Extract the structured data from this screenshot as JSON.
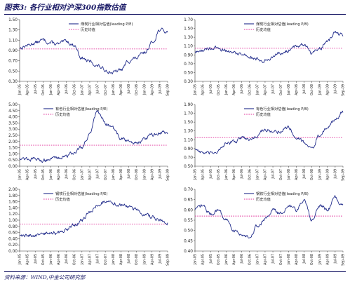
{
  "figure": {
    "title": "图表3: 各行业相对沪深300指数估值",
    "source": "资料来源：WIND,中金公司研究部"
  },
  "colors": {
    "series": "#1f2a8a",
    "mean": "#e0309a",
    "text": "#1a1a66"
  },
  "chart_data": [
    {
      "type": "line",
      "title": "",
      "legend": {
        "series": "煤炭行业相对估值(leading P/E)",
        "mean": "历史均值",
        "placement": "top-right"
      },
      "x": [
        "Jan-05",
        "Apr-05",
        "Jul-05",
        "Oct-05",
        "Jan-06",
        "Apr-06",
        "Jul-06",
        "Oct-06",
        "Jan-07",
        "Apr-07",
        "Jul-07",
        "Oct-07",
        "Jan-08",
        "Apr-08",
        "Jul-08",
        "Oct-08",
        "Jan-09",
        "Apr-09",
        "Jul-09",
        "Sep-09"
      ],
      "series": [
        {
          "values": [
            0.95,
            1.0,
            1.05,
            1.1,
            1.05,
            1.02,
            1.08,
            1.0,
            0.75,
            0.68,
            0.6,
            0.52,
            0.47,
            0.52,
            0.7,
            0.75,
            0.85,
            1.05,
            1.3,
            1.25
          ]
        }
      ],
      "mean": 0.93,
      "ylim": [
        0.3,
        1.5
      ],
      "yticks": [
        "0.30",
        "0.50",
        "0.70",
        "0.90",
        "1.10",
        "1.30",
        "1.50"
      ]
    },
    {
      "type": "line",
      "title": "",
      "legend": {
        "series": "煤炭行业相对估值(leading P/B)",
        "mean": "历史均值",
        "placement": "top-right"
      },
      "x": [
        "Jan-05",
        "Apr-05",
        "Jul-05",
        "Oct-05",
        "Jan-06",
        "Apr-06",
        "Jul-06",
        "Oct-06",
        "Jan-07",
        "Apr-07",
        "Jul-07",
        "Oct-07",
        "Jan-08",
        "Apr-08",
        "Jul-08",
        "Oct-08",
        "Jan-09",
        "Apr-09",
        "Jul-09",
        "Sep-09"
      ],
      "series": [
        {
          "values": [
            0.95,
            1.0,
            1.05,
            1.05,
            1.0,
            0.95,
            0.92,
            0.88,
            0.8,
            0.78,
            0.85,
            0.92,
            1.0,
            1.1,
            1.15,
            0.95,
            1.05,
            1.2,
            1.4,
            1.35
          ]
        }
      ],
      "mean": 1.05,
      "ylim": [
        0.3,
        1.7
      ],
      "yticks": [
        "0.30",
        "0.50",
        "0.70",
        "0.90",
        "1.10",
        "1.30",
        "1.50",
        "1.70"
      ]
    },
    {
      "type": "line",
      "title": "",
      "legend": {
        "series": "有色行业相对估值(leading P/E)",
        "mean": "历史均值",
        "placement": "top-left"
      },
      "x": [
        "Jan-05",
        "Apr-05",
        "Jul-05",
        "Oct-05",
        "Jan-06",
        "Apr-06",
        "Jul-06",
        "Oct-06",
        "Jan-07",
        "Apr-07",
        "Jul-07",
        "Oct-07",
        "Jan-08",
        "Apr-08",
        "Jul-08",
        "Oct-08",
        "Jan-09",
        "Apr-09",
        "Jul-09",
        "Sep-09"
      ],
      "series": [
        {
          "values": [
            0.7,
            0.6,
            0.55,
            0.5,
            0.6,
            0.7,
            0.85,
            1.1,
            1.6,
            2.6,
            4.4,
            3.5,
            3.0,
            2.3,
            2.0,
            1.9,
            2.2,
            2.5,
            2.7,
            2.7
          ]
        }
      ],
      "mean": 1.7,
      "ylim": [
        0.0,
        5.0
      ],
      "yticks": [
        "0.00",
        "0.50",
        "1.00",
        "1.50",
        "2.00",
        "2.50",
        "3.00",
        "3.50",
        "4.00",
        "4.50",
        "5.00"
      ]
    },
    {
      "type": "line",
      "title": "",
      "legend": {
        "series": "有色行业相对估值(leading P/B)",
        "mean": "历史均值",
        "placement": "top-right"
      },
      "x": [
        "Jan-05",
        "Apr-05",
        "Jul-05",
        "Oct-05",
        "Jan-06",
        "Apr-06",
        "Jul-06",
        "Oct-06",
        "Jan-07",
        "Apr-07",
        "Jul-07",
        "Oct-07",
        "Jan-08",
        "Apr-08",
        "Jul-08",
        "Oct-08",
        "Jan-09",
        "Apr-09",
        "Jul-09",
        "Sep-09"
      ],
      "series": [
        {
          "values": [
            0.9,
            0.8,
            0.78,
            0.85,
            1.0,
            1.05,
            1.15,
            1.1,
            1.2,
            1.35,
            1.25,
            1.3,
            1.4,
            1.15,
            1.05,
            0.9,
            1.2,
            1.35,
            1.55,
            1.75
          ]
        }
      ],
      "mean": 1.15,
      "ylim": [
        0.5,
        1.9
      ],
      "yticks": [
        "0.50",
        "0.70",
        "0.90",
        "1.10",
        "1.30",
        "1.50",
        "1.70",
        "1.90"
      ]
    },
    {
      "type": "line",
      "title": "",
      "legend": {
        "series": "钢铁行业相对估值(leading P/E)",
        "mean": "历史均值",
        "placement": "top-left"
      },
      "x": [
        "Jan-05",
        "Apr-05",
        "Jul-05",
        "Oct-05",
        "Jan-06",
        "Apr-06",
        "Jul-06",
        "Oct-06",
        "Jan-07",
        "Apr-07",
        "Jul-07",
        "Oct-07",
        "Jan-08",
        "Apr-08",
        "Jul-08",
        "Oct-08",
        "Jan-09",
        "Apr-09",
        "Jul-09",
        "Sep-09"
      ],
      "series": [
        {
          "values": [
            0.5,
            0.52,
            0.5,
            0.55,
            0.6,
            0.58,
            0.7,
            0.85,
            1.0,
            1.25,
            1.5,
            1.6,
            1.55,
            1.5,
            1.45,
            1.35,
            1.2,
            1.1,
            1.0,
            0.92
          ]
        }
      ],
      "mean": 0.87,
      "ylim": [
        0.0,
        2.0
      ],
      "yticks": [
        "0.00",
        "0.20",
        "0.40",
        "0.60",
        "0.80",
        "1.00",
        "1.20",
        "1.40",
        "1.60",
        "1.80",
        "2.00"
      ]
    },
    {
      "type": "line",
      "title": "",
      "legend": {
        "series": "钢铁行业相对估值(leading P/B)",
        "mean": "历史均值",
        "placement": "top-right"
      },
      "x": [
        "Jan-05",
        "Apr-05",
        "Jul-05",
        "Oct-05",
        "Jan-06",
        "Apr-06",
        "Jul-06",
        "Oct-06",
        "Jan-07",
        "Apr-07",
        "Jul-07",
        "Oct-07",
        "Jan-08",
        "Apr-08",
        "Jul-08",
        "Oct-08",
        "Jan-09",
        "Apr-09",
        "Jul-09",
        "Sep-09"
      ],
      "series": [
        {
          "values": [
            0.6,
            0.62,
            0.58,
            0.6,
            0.55,
            0.5,
            0.48,
            0.47,
            0.52,
            0.55,
            0.6,
            0.58,
            0.62,
            0.6,
            0.65,
            0.55,
            0.62,
            0.6,
            0.66,
            0.62
          ]
        }
      ],
      "mean": 0.57,
      "ylim": [
        0.4,
        0.7
      ],
      "yticks": [
        "0.40",
        "0.45",
        "0.50",
        "0.55",
        "0.60",
        "0.65",
        "0.70"
      ]
    }
  ]
}
